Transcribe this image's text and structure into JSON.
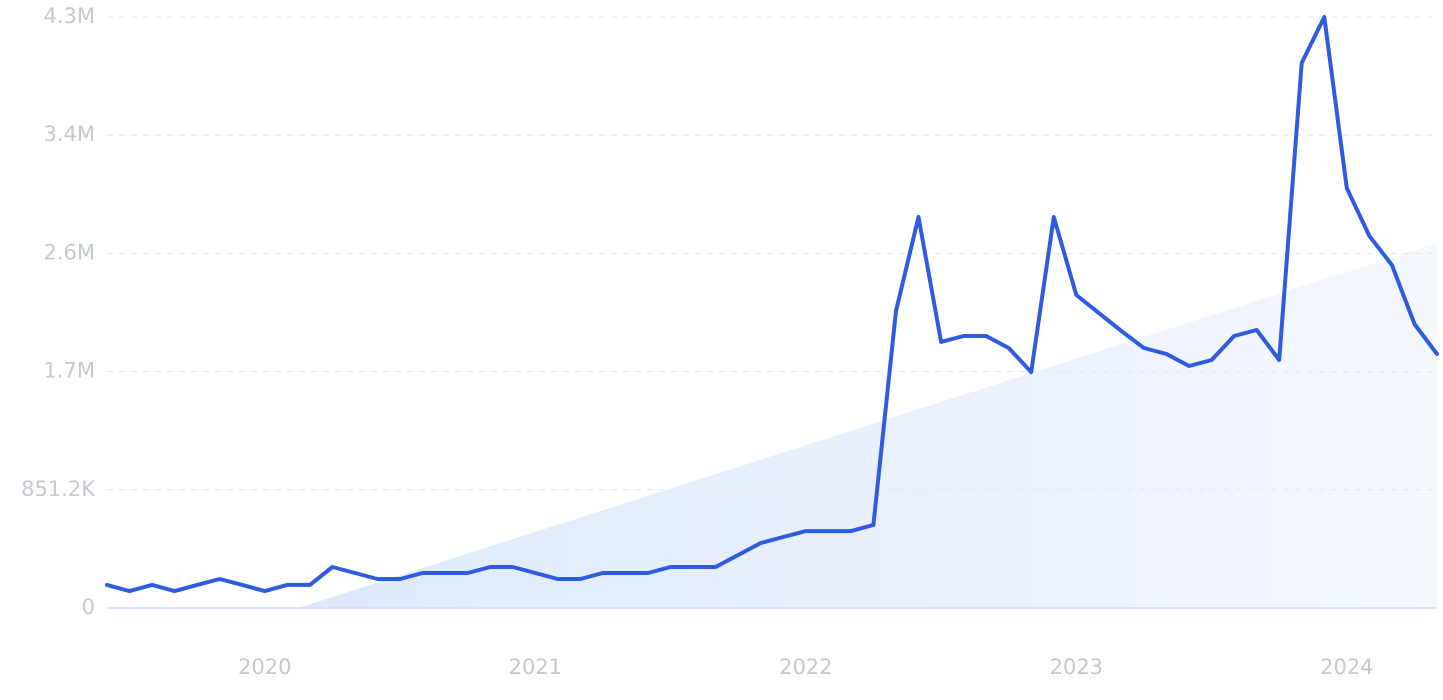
{
  "chart_data": {
    "type": "line",
    "categories": [
      null,
      null,
      null,
      null,
      null,
      null,
      null,
      "2020",
      null,
      null,
      null,
      null,
      null,
      null,
      null,
      null,
      null,
      null,
      null,
      "2021",
      null,
      null,
      null,
      null,
      null,
      null,
      null,
      null,
      null,
      null,
      null,
      "2022",
      null,
      null,
      null,
      null,
      null,
      null,
      null,
      null,
      null,
      null,
      null,
      "2023",
      null,
      null,
      null,
      null,
      null,
      null,
      null,
      null,
      null,
      null,
      null,
      "2024",
      null,
      null,
      null,
      null
    ],
    "series": [
      {
        "color": "#2f5be0",
        "values": [
          166000,
          122000,
          166000,
          122000,
          166000,
          209000,
          166000,
          122000,
          166000,
          166000,
          295000,
          252000,
          209000,
          209000,
          252000,
          252000,
          252000,
          295000,
          295000,
          252000,
          209000,
          209000,
          252000,
          252000,
          252000,
          295000,
          295000,
          295000,
          382000,
          468000,
          511000,
          554000,
          554000,
          554000,
          598000,
          2139000,
          2816000,
          1916000,
          1959000,
          1959000,
          1872000,
          1699000,
          2816000,
          2254000,
          2124000,
          1995000,
          1872000,
          1829000,
          1743000,
          1786000,
          1959000,
          2002000,
          1786000,
          3925000,
          4256000,
          3024000,
          2679000,
          2470000,
          2045000,
          1829000
        ]
      }
    ],
    "ylim": [
      0,
      4256000
    ],
    "yticks": [
      0,
      {
        "value": 851200,
        "label": "851.2K"
      },
      {
        "value": 1702400,
        "label": "1.7M"
      },
      {
        "value": 2553600,
        "label": "2.6M"
      },
      {
        "value": 3404800,
        "label": "3.4M"
      },
      {
        "value": 4256000,
        "label": "4.3M"
      }
    ],
    "grid": true
  }
}
